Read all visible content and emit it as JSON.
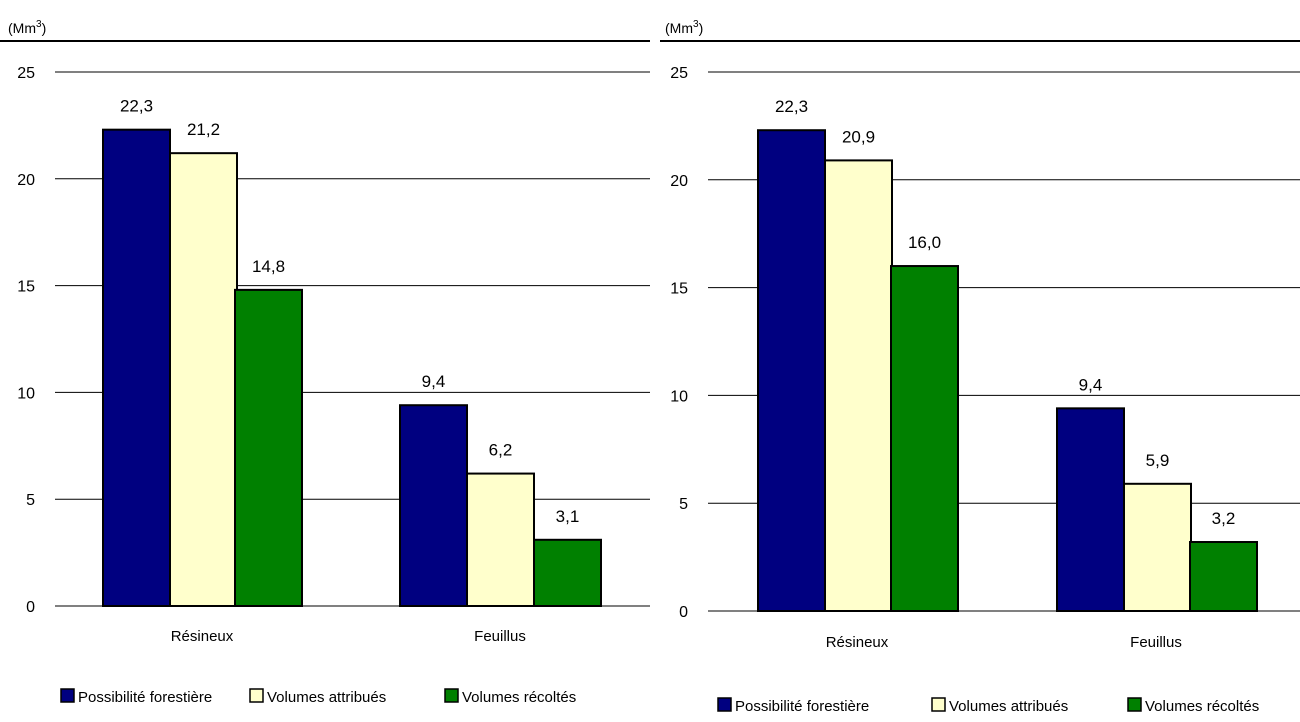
{
  "page": {
    "colors": {
      "possibilite": "#000080",
      "attribues": "#ffffcc",
      "recoltes": "#008000",
      "grid": "#000000",
      "bar_stroke": "#000000"
    }
  },
  "chart_data": [
    {
      "type": "bar",
      "unit_label": "(Mm",
      "unit_sup": "3",
      "unit_close": ")",
      "categories": [
        "Résineux",
        "Feuillus"
      ],
      "ylim": [
        0,
        25
      ],
      "yticks": [
        0,
        5,
        10,
        15,
        20,
        25
      ],
      "ytick_labels": [
        "0",
        "5",
        "10",
        "15",
        "20",
        "25"
      ],
      "grid": true,
      "legend_position": "bottom",
      "series": [
        {
          "name": "Possibilité forestière",
          "values": [
            22.3,
            9.4
          ],
          "labels": [
            "22,3",
            "9,4"
          ],
          "color": "#000080"
        },
        {
          "name": "Volumes attribués",
          "values": [
            21.2,
            6.2
          ],
          "labels": [
            "21,2",
            "6,2"
          ],
          "color": "#ffffcc"
        },
        {
          "name": "Volumes récoltés",
          "values": [
            14.8,
            3.1
          ],
          "labels": [
            "14,8",
            "3,1"
          ],
          "color": "#008000"
        }
      ]
    },
    {
      "type": "bar",
      "unit_label": "(Mm",
      "unit_sup": "3",
      "unit_close": ")",
      "categories": [
        "Résineux",
        "Feuillus"
      ],
      "ylim": [
        0,
        25
      ],
      "yticks": [
        0,
        5,
        10,
        15,
        20,
        25
      ],
      "ytick_labels": [
        "0",
        "5",
        "10",
        "15",
        "20",
        "25"
      ],
      "grid": true,
      "legend_position": "bottom",
      "series": [
        {
          "name": "Possibilité forestière",
          "values": [
            22.3,
            9.4
          ],
          "labels": [
            "22,3",
            "9,4"
          ],
          "color": "#000080"
        },
        {
          "name": "Volumes attribués",
          "values": [
            20.9,
            5.9
          ],
          "labels": [
            "20,9",
            "5,9"
          ],
          "color": "#ffffcc"
        },
        {
          "name": "Volumes récoltés",
          "values": [
            16.0,
            3.2
          ],
          "labels": [
            "16,0",
            "3,2"
          ],
          "color": "#008000"
        }
      ]
    }
  ]
}
